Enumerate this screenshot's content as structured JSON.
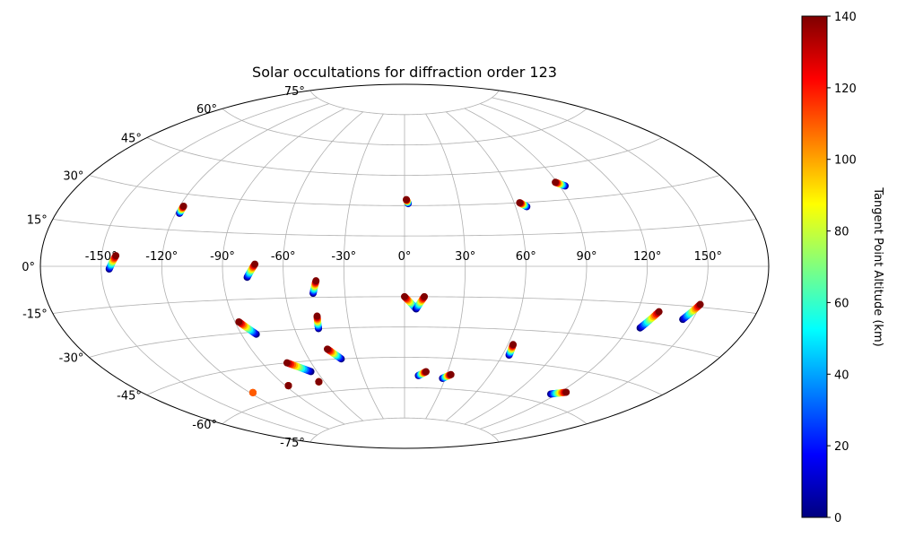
{
  "chart_data": {
    "type": "scatter",
    "projection": "aitoff",
    "title": "Solar occultations for diffraction order 123",
    "lon_ticks": [
      {
        "value": -150,
        "label": "-150°"
      },
      {
        "value": -120,
        "label": "-120°"
      },
      {
        "value": -90,
        "label": "-90°"
      },
      {
        "value": -60,
        "label": "-60°"
      },
      {
        "value": -30,
        "label": "-30°"
      },
      {
        "value": 0,
        "label": "0°"
      },
      {
        "value": 30,
        "label": "30°"
      },
      {
        "value": 60,
        "label": "60°"
      },
      {
        "value": 90,
        "label": "90°"
      },
      {
        "value": 120,
        "label": "120°"
      },
      {
        "value": 150,
        "label": "150°"
      }
    ],
    "lat_ticks": [
      {
        "value": 75,
        "label": "75°"
      },
      {
        "value": 60,
        "label": "60°"
      },
      {
        "value": 45,
        "label": "45°"
      },
      {
        "value": 30,
        "label": "30°"
      },
      {
        "value": 15,
        "label": "15°"
      },
      {
        "value": 0,
        "label": "0°"
      },
      {
        "value": -15,
        "label": "-15°"
      },
      {
        "value": -30,
        "label": "-30°"
      },
      {
        "value": -45,
        "label": "-45°"
      },
      {
        "value": -60,
        "label": "-60°"
      },
      {
        "value": -75,
        "label": "-75°"
      }
    ],
    "grid": true,
    "colorbar": {
      "label": "Tangent Point Altitude (km)",
      "range": [
        0,
        140
      ],
      "ticks": [
        0,
        20,
        40,
        60,
        80,
        100,
        120,
        140
      ],
      "colormap": "jet"
    },
    "tracks": [
      {
        "start": [
          -146,
          -1
        ],
        "end": [
          -143,
          4
        ],
        "alt": [
          0,
          140
        ]
      },
      {
        "start": [
          -118,
          22
        ],
        "end": [
          -118,
          25
        ],
        "alt": [
          0,
          140
        ]
      },
      {
        "start": [
          -78,
          -5
        ],
        "end": [
          -74,
          1
        ],
        "alt": [
          0,
          140
        ]
      },
      {
        "start": [
          -46,
          -13
        ],
        "end": [
          -44,
          -7
        ],
        "alt": [
          0,
          140
        ]
      },
      {
        "start": [
          -82,
          -31
        ],
        "end": [
          -88,
          -25
        ],
        "alt": [
          0,
          140
        ]
      },
      {
        "start": [
          -47,
          -30
        ],
        "end": [
          -46,
          -24
        ],
        "alt": [
          0,
          140
        ]
      },
      {
        "start": [
          -40,
          -45
        ],
        "end": [
          -46,
          -40
        ],
        "alt": [
          0,
          140
        ]
      },
      {
        "start": [
          -64,
          -50
        ],
        "end": [
          -75,
          -45
        ],
        "alt": [
          0,
          140
        ]
      },
      {
        "start": [
          -88,
          -55
        ],
        "end": [
          -88,
          -55
        ],
        "alt": [
          0,
          140
        ]
      },
      {
        "start": [
          -64,
          -55
        ],
        "end": [
          -64,
          -55
        ],
        "alt": [
          0,
          140
        ]
      },
      {
        "start": [
          -118,
          -55
        ],
        "end": [
          -118,
          -55
        ],
        "alt": [
          110,
          110
        ]
      },
      {
        "start": [
          2,
          31
        ],
        "end": [
          1,
          33
        ],
        "alt": [
          0,
          140
        ]
      },
      {
        "start": [
          66,
          28
        ],
        "end": [
          63,
          30
        ],
        "alt": [
          0,
          140
        ]
      },
      {
        "start": [
          93,
          36
        ],
        "end": [
          89,
          38
        ],
        "alt": [
          0,
          140
        ]
      },
      {
        "start": [
          6,
          -21
        ],
        "end": [
          0,
          -15
        ],
        "alt": [
          0,
          140
        ]
      },
      {
        "start": [
          6,
          -21
        ],
        "end": [
          10,
          -15
        ],
        "alt": [
          0,
          140
        ]
      },
      {
        "start": [
          64,
          -42
        ],
        "end": [
          63,
          -37
        ],
        "alt": [
          0,
          140
        ]
      },
      {
        "start": [
          10,
          -54
        ],
        "end": [
          15,
          -52
        ],
        "alt": [
          0,
          140
        ]
      },
      {
        "start": [
          28,
          -55
        ],
        "end": [
          33,
          -53
        ],
        "alt": [
          0,
          140
        ]
      },
      {
        "start": [
          126,
          -25
        ],
        "end": [
          131,
          -18
        ],
        "alt": [
          0,
          140
        ]
      },
      {
        "start": [
          145,
          -20
        ],
        "end": [
          150,
          -14
        ],
        "alt": [
          0,
          140
        ]
      },
      {
        "start": [
          116,
          -56
        ],
        "end": [
          124,
          -54
        ],
        "alt": [
          0,
          140
        ]
      }
    ]
  }
}
